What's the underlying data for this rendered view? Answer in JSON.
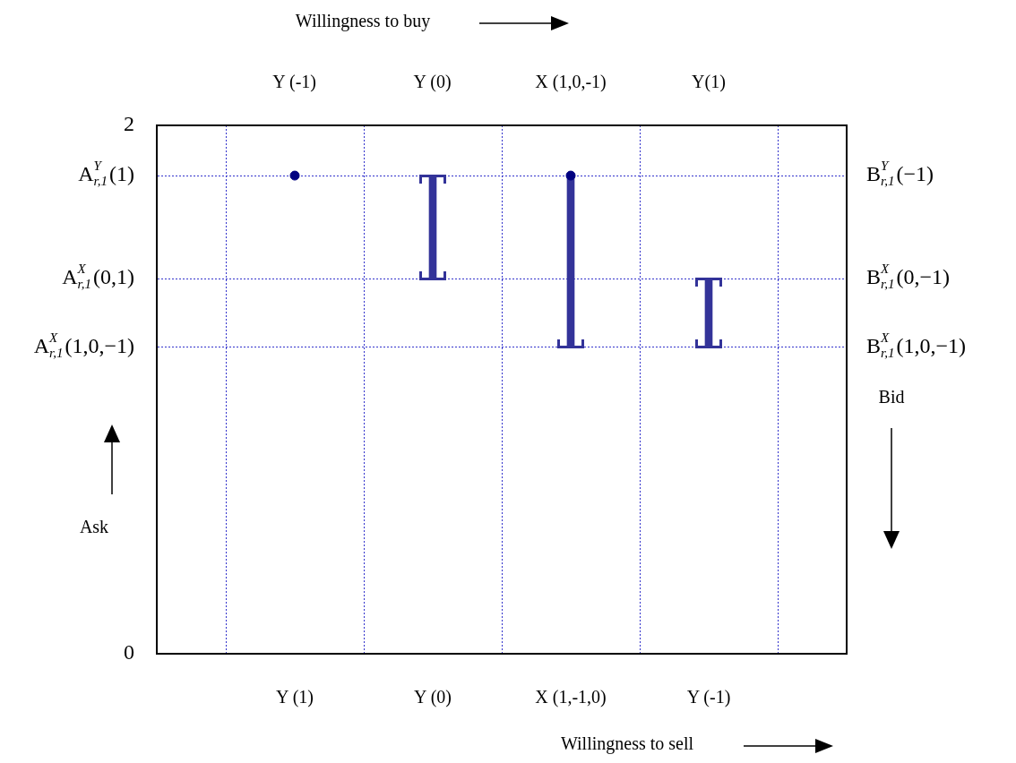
{
  "chart_data": {
    "type": "bar",
    "categories": [
      "Y (1)",
      "Y (0)",
      "X (1,-1,0)",
      "Y (-1)"
    ],
    "xlabel": "Willingness to sell",
    "ylabel": "Ask",
    "y2label": "Bid",
    "ylim": [
      0,
      2
    ],
    "yticks": [
      0,
      {
        "value": 1.16,
        "label": "A$^{X}$$_{r,1}$(1,0,−1)"
      },
      {
        "value": 1.42,
        "label": "A$^{X}$$_{r,1}$(0,1)"
      },
      {
        "value": 1.81,
        "label": "A$^{Y}$$_{r,1}$(1)"
      },
      2
    ],
    "annotations": [
      "Willingness to buy",
      "Y (-1)",
      "Y (0)",
      "X (1,0,-1)",
      "Y(1)",
      "B$^{Y}$$_{r,1}$(−1)",
      "B$^{X}$$_{r,1}$(0,−1)",
      "B$^{X}$$_{r,1}$(1,0,−1)"
    ],
    "grid": true,
    "series": [
      {
        "color": "#333399",
        "base": [
          null,
          1.42,
          1.16,
          1.16
        ],
        "values": [
          null,
          0.39,
          0.65,
          0.26
        ]
      },
      {
        "type": "scatter",
        "color": "#000080",
        "x": [
          "Y (1)",
          "X (1,-1,0)"
        ],
        "values": [
          1.81,
          1.81
        ],
        "marker": "circle"
      }
    ]
  }
}
